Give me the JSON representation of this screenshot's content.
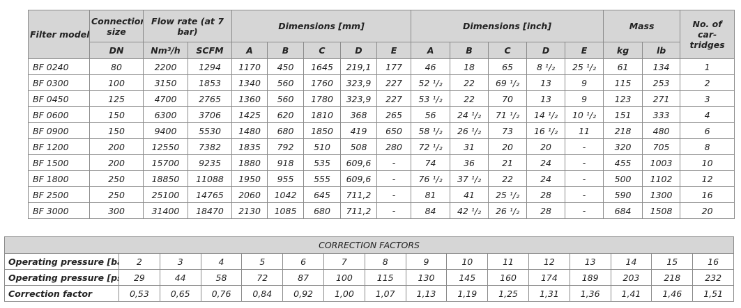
{
  "main_table": {
    "headers": {
      "filter_model": "Filter model",
      "connection_size": "Connection size",
      "flow_rate": "Flow rate (at 7 bar)",
      "dims_mm": "Dimensions [mm]",
      "dims_inch": "Dimensions [inch]",
      "mass": "Mass",
      "cartridges": "No. of car-tridges"
    },
    "subheaders": [
      "DN",
      "Nm³/h",
      "SCFM",
      "A",
      "B",
      "C",
      "D",
      "E",
      "A",
      "B",
      "C",
      "D",
      "E",
      "kg",
      "lb"
    ],
    "rows": [
      [
        "BF 0240",
        "80",
        "2200",
        "1294",
        "1170",
        "450",
        "1645",
        "219,1",
        "177",
        "46",
        "18",
        "65",
        "8 ¹/₂",
        "25 ¹/₂",
        "61",
        "134",
        "1"
      ],
      [
        "BF 0300",
        "100",
        "3150",
        "1853",
        "1340",
        "560",
        "1760",
        "323,9",
        "227",
        "52 ¹/₂",
        "22",
        "69 ¹/₂",
        "13",
        "9",
        "115",
        "253",
        "2"
      ],
      [
        "BF 0450",
        "125",
        "4700",
        "2765",
        "1360",
        "560",
        "1780",
        "323,9",
        "227",
        "53 ¹/₂",
        "22",
        "70",
        "13",
        "9",
        "123",
        "271",
        "3"
      ],
      [
        "BF 0600",
        "150",
        "6300",
        "3706",
        "1425",
        "620",
        "1810",
        "368",
        "265",
        "56",
        "24 ¹/₂",
        "71 ¹/₂",
        "14 ¹/₂",
        "10 ¹/₂",
        "151",
        "333",
        "4"
      ],
      [
        "BF 0900",
        "150",
        "9400",
        "5530",
        "1480",
        "680",
        "1850",
        "419",
        "650",
        "58 ¹/₂",
        "26 ¹/₂",
        "73",
        "16 ¹/₂",
        "11",
        "218",
        "480",
        "6"
      ],
      [
        "BF 1200",
        "200",
        "12550",
        "7382",
        "1835",
        "792",
        "510",
        "508",
        "280",
        "72 ¹/₂",
        "31",
        "20",
        "20",
        "-",
        "320",
        "705",
        "8"
      ],
      [
        "BF 1500",
        "200",
        "15700",
        "9235",
        "1880",
        "918",
        "535",
        "609,6",
        "-",
        "74",
        "36",
        "21",
        "24",
        "-",
        "455",
        "1003",
        "10"
      ],
      [
        "BF 1800",
        "250",
        "18850",
        "11088",
        "1950",
        "955",
        "555",
        "609,6",
        "-",
        "76 ¹/₂",
        "37 ¹/₂",
        "22",
        "24",
        "-",
        "500",
        "1102",
        "12"
      ],
      [
        "BF 2500",
        "250",
        "25100",
        "14765",
        "2060",
        "1042",
        "645",
        "711,2",
        "-",
        "81",
        "41",
        "25 ¹/₂",
        "28",
        "-",
        "590",
        "1300",
        "16"
      ],
      [
        "BF 3000",
        "300",
        "31400",
        "18470",
        "2130",
        "1085",
        "680",
        "711,2",
        "-",
        "84",
        "42 ¹/₂",
        "26 ¹/₂",
        "28",
        "-",
        "684",
        "1508",
        "20"
      ]
    ]
  },
  "correction_table": {
    "title": "CORRECTION FACTORS",
    "rows": [
      {
        "label": "Operating pressure [bar]",
        "values": [
          "2",
          "3",
          "4",
          "5",
          "6",
          "7",
          "8",
          "9",
          "10",
          "11",
          "12",
          "13",
          "14",
          "15",
          "16"
        ]
      },
      {
        "label": "Operating pressure [psi]",
        "values": [
          "29",
          "44",
          "58",
          "72",
          "87",
          "100",
          "115",
          "130",
          "145",
          "160",
          "174",
          "189",
          "203",
          "218",
          "232"
        ]
      },
      {
        "label": "Correction factor",
        "values": [
          "0,53",
          "0,65",
          "0,76",
          "0,84",
          "0,92",
          "1,00",
          "1,07",
          "1,13",
          "1,19",
          "1,25",
          "1,31",
          "1,36",
          "1,41",
          "1,46",
          "1,51"
        ]
      }
    ]
  }
}
